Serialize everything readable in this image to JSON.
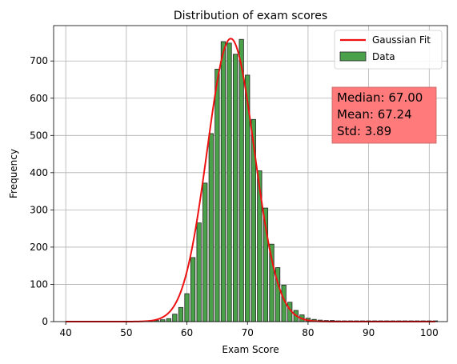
{
  "chart_data": {
    "type": "bar",
    "title": "Distribution of exam scores",
    "xlabel": "Exam Score",
    "ylabel": "Frequency",
    "xlim": [
      38,
      103
    ],
    "ylim": [
      0,
      795
    ],
    "xticks": [
      40,
      50,
      60,
      70,
      80,
      90,
      100
    ],
    "yticks": [
      0,
      100,
      200,
      300,
      400,
      500,
      600,
      700
    ],
    "grid": true,
    "legend_position": "top-right",
    "bar_color": "#4aa14a",
    "fit_color": "#ee1111",
    "series": [
      {
        "name": "Data",
        "type": "histogram",
        "x": [
          54,
          55,
          56,
          57,
          58,
          59,
          60,
          61,
          62,
          63,
          64,
          65,
          66,
          67,
          68,
          69,
          70,
          71,
          72,
          73,
          74,
          75,
          76,
          77,
          78,
          79,
          80,
          81,
          82,
          83,
          84,
          85,
          86,
          87,
          88,
          89,
          90,
          91,
          92,
          93,
          94,
          95,
          96,
          97,
          98,
          99,
          100,
          101
        ],
        "values": [
          2,
          3,
          5,
          8,
          20,
          38,
          75,
          172,
          265,
          372,
          505,
          678,
          752,
          748,
          718,
          758,
          662,
          543,
          405,
          305,
          208,
          145,
          98,
          52,
          30,
          18,
          9,
          6,
          4,
          3,
          3,
          2,
          2,
          2,
          2,
          2,
          2,
          2,
          2,
          2,
          2,
          2,
          2,
          2,
          2,
          2,
          2,
          2
        ]
      },
      {
        "name": "Gaussian Fit",
        "type": "line",
        "mean": 67.24,
        "std": 3.89,
        "peak": 760,
        "x_range": [
          40,
          101
        ]
      }
    ],
    "annotation": {
      "lines": [
        "Median: 67.00",
        "Mean: 67.24",
        "Std: 3.89"
      ],
      "box_color": "#ff7b7b"
    }
  }
}
